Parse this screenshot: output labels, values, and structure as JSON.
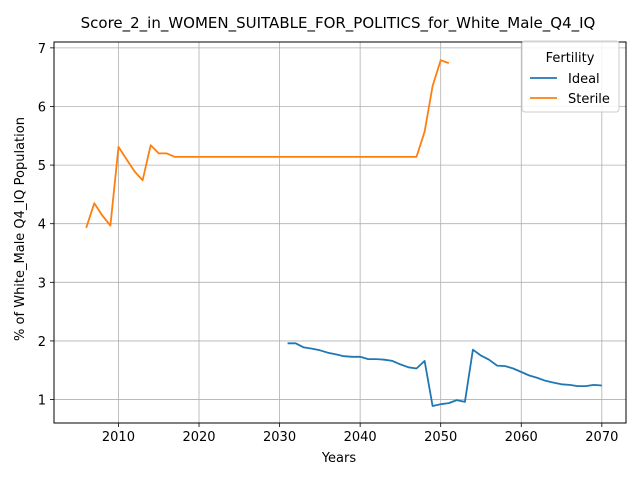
{
  "chart_data": {
    "type": "line",
    "title": "Score_2_in_WOMEN_SUITABLE_FOR_POLITICS_for_White_Male_Q4_IQ",
    "xlabel": "Years",
    "ylabel": "% of White_Male Q4_IQ Population",
    "xlim": [
      2002,
      2073
    ],
    "ylim": [
      0.6,
      7.1
    ],
    "xticks": [
      2010,
      2020,
      2030,
      2040,
      2050,
      2060,
      2070
    ],
    "yticks": [
      1,
      2,
      3,
      4,
      5,
      6,
      7
    ],
    "grid": true,
    "legend": {
      "title": "Fertility",
      "position": "top-right"
    },
    "series": [
      {
        "name": "Ideal",
        "color": "#1f77b4",
        "x": [
          2031,
          2032,
          2033,
          2034,
          2035,
          2036,
          2037,
          2038,
          2039,
          2040,
          2041,
          2042,
          2043,
          2044,
          2045,
          2046,
          2047,
          2048,
          2049,
          2050,
          2051,
          2052,
          2053,
          2054,
          2055,
          2056,
          2057,
          2058,
          2059,
          2060,
          2061,
          2062,
          2063,
          2064,
          2065,
          2066,
          2067,
          2068,
          2069,
          2070
        ],
        "y": [
          1.96,
          1.96,
          1.89,
          1.87,
          1.84,
          1.8,
          1.77,
          1.74,
          1.73,
          1.73,
          1.69,
          1.69,
          1.68,
          1.66,
          1.6,
          1.55,
          1.53,
          1.66,
          0.89,
          0.92,
          0.94,
          0.99,
          0.96,
          1.85,
          1.75,
          1.68,
          1.58,
          1.57,
          1.53,
          1.47,
          1.41,
          1.37,
          1.32,
          1.29,
          1.26,
          1.25,
          1.23,
          1.23,
          1.25,
          1.24
        ]
      },
      {
        "name": "Sterile",
        "color": "#ff7f0e",
        "x": [
          2006,
          2007,
          2008,
          2009,
          2010,
          2011,
          2012,
          2013,
          2014,
          2015,
          2016,
          2017,
          2018,
          2019,
          2020,
          2025,
          2030,
          2035,
          2040,
          2045,
          2046,
          2047,
          2048,
          2049,
          2050,
          2051
        ],
        "y": [
          3.93,
          4.35,
          4.14,
          3.97,
          5.31,
          5.1,
          4.89,
          4.74,
          5.34,
          5.2,
          5.2,
          5.14,
          5.14,
          5.14,
          5.14,
          5.14,
          5.14,
          5.14,
          5.14,
          5.14,
          5.14,
          5.14,
          5.57,
          6.35,
          6.79,
          6.74
        ]
      }
    ]
  }
}
